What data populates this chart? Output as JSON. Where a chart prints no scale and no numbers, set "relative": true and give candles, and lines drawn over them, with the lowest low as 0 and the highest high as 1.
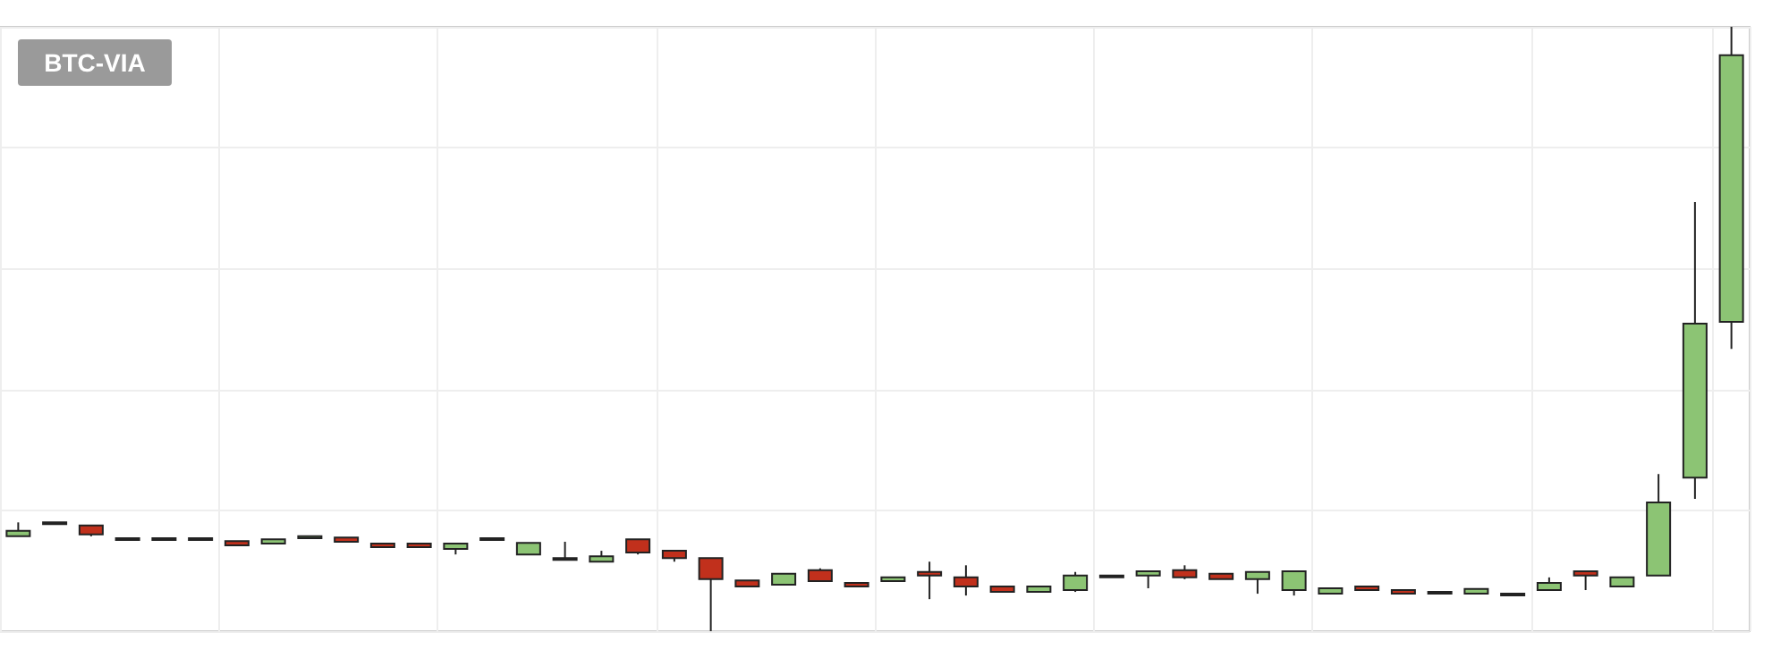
{
  "chart_data": {
    "type": "candlestick",
    "title": "BTC-VIA",
    "relative": true,
    "grid": true,
    "colors": [
      "#8cc474",
      "#8cc474",
      "#c1301c",
      "#c1301c",
      "#c1301c",
      "#c1301c",
      "#c1301c",
      "#8cc474",
      "#8cc474",
      "#c1301c",
      "#c1301c",
      "#c1301c",
      "#8cc474",
      "#8cc474",
      "#8cc474",
      "#8cc474",
      "#8cc474",
      "#c1301c",
      "#c1301c",
      "#c1301c",
      "#c1301c",
      "#8cc474",
      "#c1301c",
      "#c1301c",
      "#8cc474",
      "#c1301c",
      "#c1301c",
      "#c1301c",
      "#8cc474",
      "#8cc474",
      "#8cc474",
      "#8cc474",
      "#c1301c",
      "#c1301c",
      "#8cc474",
      "#8cc474",
      "#8cc474",
      "#c1301c",
      "#c1301c",
      "#8cc474",
      "#8cc474",
      "#8cc474",
      "#8cc474",
      "#c1301c",
      "#8cc474",
      "#8cc474",
      "#8cc474",
      "#8cc474"
    ],
    "categories": [
      null,
      null,
      null,
      null,
      null,
      null,
      null,
      null,
      null,
      null,
      null,
      null,
      null,
      null,
      null,
      null,
      null,
      null,
      null,
      null,
      null,
      null,
      null,
      null,
      null,
      null,
      null,
      null,
      null,
      null,
      null,
      null,
      null,
      null,
      null,
      null,
      null,
      null,
      null,
      null,
      null,
      null,
      null,
      null,
      null,
      null,
      null,
      null
    ],
    "ohlc": [
      [
        0.157,
        0.18,
        0.157,
        0.166
      ],
      [
        0.18,
        0.18,
        0.177,
        0.177
      ],
      [
        0.175,
        0.175,
        0.157,
        0.16
      ],
      [
        0.154,
        0.154,
        0.151,
        0.151
      ],
      [
        0.154,
        0.154,
        0.151,
        0.151
      ],
      [
        0.154,
        0.154,
        0.151,
        0.151
      ],
      [
        0.149,
        0.149,
        0.142,
        0.142
      ],
      [
        0.145,
        0.152,
        0.145,
        0.152
      ],
      [
        0.157,
        0.157,
        0.154,
        0.154
      ],
      [
        0.155,
        0.155,
        0.148,
        0.148
      ],
      [
        0.145,
        0.145,
        0.139,
        0.139
      ],
      [
        0.145,
        0.145,
        0.139,
        0.139
      ],
      [
        0.136,
        0.145,
        0.127,
        0.145
      ],
      [
        0.154,
        0.154,
        0.151,
        0.151
      ],
      [
        0.127,
        0.146,
        0.127,
        0.146
      ],
      [
        0.118,
        0.148,
        0.118,
        0.121
      ],
      [
        0.115,
        0.133,
        0.115,
        0.124
      ],
      [
        0.152,
        0.152,
        0.127,
        0.13
      ],
      [
        0.133,
        0.133,
        0.115,
        0.121
      ],
      [
        0.121,
        0.121,
        0,
        0.086
      ],
      [
        0.084,
        0.084,
        0.074,
        0.074
      ],
      [
        0.077,
        0.095,
        0.077,
        0.095
      ],
      [
        0.101,
        0.104,
        0.083,
        0.083
      ],
      [
        0.08,
        0.08,
        0.074,
        0.074
      ],
      [
        0.083,
        0.089,
        0.083,
        0.089
      ],
      [
        0.098,
        0.115,
        0.053,
        0.092
      ],
      [
        0.089,
        0.109,
        0.059,
        0.074
      ],
      [
        0.074,
        0.074,
        0.065,
        0.065
      ],
      [
        0.065,
        0.074,
        0.065,
        0.074
      ],
      [
        0.068,
        0.098,
        0.065,
        0.092
      ],
      [
        0.092,
        0.092,
        0.089,
        0.089
      ],
      [
        0.092,
        0.099,
        0.071,
        0.099
      ],
      [
        0.101,
        0.109,
        0.086,
        0.089
      ],
      [
        0.095,
        0.095,
        0.086,
        0.086
      ],
      [
        0.086,
        0.098,
        0.062,
        0.098
      ],
      [
        0.068,
        0.099,
        0.059,
        0.099
      ],
      [
        0.062,
        0.071,
        0.062,
        0.071
      ],
      [
        0.074,
        0.074,
        0.068,
        0.068
      ],
      [
        0.068,
        0.068,
        0.062,
        0.062
      ],
      [
        0.065,
        0.065,
        0.062,
        0.062
      ],
      [
        0.062,
        0.07,
        0.062,
        0.07
      ],
      [
        0.062,
        0.062,
        0.059,
        0.059
      ],
      [
        0.068,
        0.089,
        0.068,
        0.08
      ],
      [
        0.099,
        0.099,
        0.068,
        0.092
      ],
      [
        0.074,
        0.089,
        0.074,
        0.089
      ],
      [
        0.092,
        0.26,
        0.092,
        0.213
      ],
      [
        0.254,
        0.71,
        0.219,
        0.509
      ],
      [
        0.512,
        1,
        0.467,
        0.953
      ]
    ]
  }
}
